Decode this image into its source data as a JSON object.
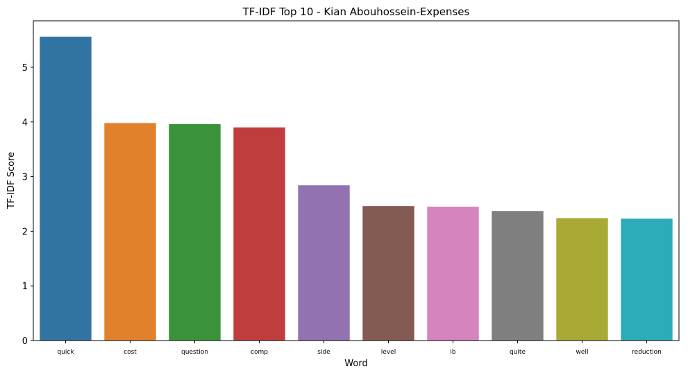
{
  "chart_data": {
    "type": "bar",
    "title": "TF-IDF Top 10 - Kian Abouhossein-Expenses",
    "xlabel": "Word",
    "ylabel": "TF-IDF Score",
    "ylim": [
      0,
      5.85
    ],
    "yticks": [
      0,
      1,
      2,
      3,
      4,
      5
    ],
    "grid": false,
    "legend": "none",
    "categories": [
      "quick",
      "cost",
      "question",
      "comp",
      "side",
      "level",
      "ib",
      "quite",
      "well",
      "reduction"
    ],
    "values": [
      5.56,
      3.98,
      3.96,
      3.9,
      2.84,
      2.46,
      2.45,
      2.37,
      2.24,
      2.23
    ],
    "colors": [
      "#3274a1",
      "#e1812c",
      "#3a923a",
      "#c03d3e",
      "#9372b2",
      "#845b53",
      "#d684bd",
      "#7f7f7f",
      "#a9aa35",
      "#2eabb8"
    ]
  }
}
